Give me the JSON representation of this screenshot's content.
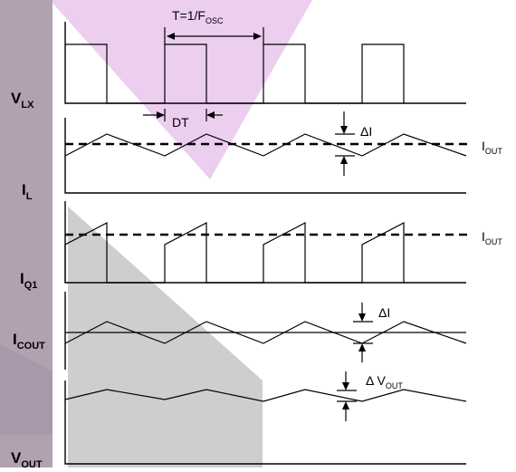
{
  "diagram": {
    "signals": [
      {
        "id": "vlx",
        "main": "V",
        "sub": "LX"
      },
      {
        "id": "il",
        "main": "I",
        "sub": "L"
      },
      {
        "id": "iq1",
        "main": "I",
        "sub": "Q1"
      },
      {
        "id": "icout",
        "main": "I",
        "sub": "COUT"
      },
      {
        "id": "vout",
        "main": "V",
        "sub": "OUT"
      }
    ],
    "annotations": {
      "period": {
        "prefix": "T=1/F",
        "sub": "OSC"
      },
      "duty": "DT",
      "delta_i": "ΔI",
      "delta_i_cout": "ΔI",
      "delta_vout": {
        "prefix": "Δ V",
        "sub": "OUT"
      },
      "iout": {
        "main": "I",
        "sub": "OUT"
      }
    },
    "colors": {
      "watermark_pink": "#e9c6ec",
      "watermark_purple": "#a897a9",
      "watermark_gray": "#c7c5c7",
      "stroke": "#000000"
    }
  }
}
